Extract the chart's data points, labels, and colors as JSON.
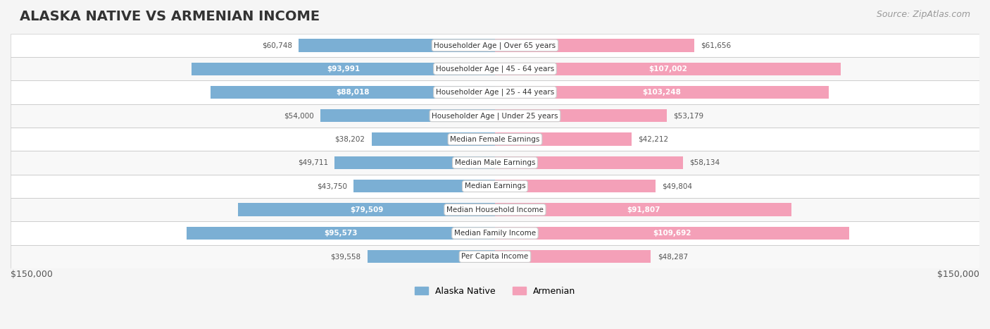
{
  "title": "ALASKA NATIVE VS ARMENIAN INCOME",
  "source": "Source: ZipAtlas.com",
  "categories": [
    "Per Capita Income",
    "Median Family Income",
    "Median Household Income",
    "Median Earnings",
    "Median Male Earnings",
    "Median Female Earnings",
    "Householder Age | Under 25 years",
    "Householder Age | 25 - 44 years",
    "Householder Age | 45 - 64 years",
    "Householder Age | Over 65 years"
  ],
  "alaska_values": [
    39558,
    95573,
    79509,
    43750,
    49711,
    38202,
    54000,
    88018,
    93991,
    60748
  ],
  "armenian_values": [
    48287,
    109692,
    91807,
    49804,
    58134,
    42212,
    53179,
    103248,
    107002,
    61656
  ],
  "alaska_labels": [
    "$39,558",
    "$95,573",
    "$79,509",
    "$43,750",
    "$49,711",
    "$38,202",
    "$54,000",
    "$88,018",
    "$93,991",
    "$60,748"
  ],
  "armenian_labels": [
    "$48,287",
    "$109,692",
    "$91,807",
    "$49,804",
    "$58,134",
    "$42,212",
    "$53,179",
    "$103,248",
    "$107,002",
    "$61,656"
  ],
  "alaska_color": "#7bafd4",
  "alaska_color_dark": "#5b8db8",
  "armenian_color": "#f4a0b8",
  "armenian_color_dark": "#e8607a",
  "max_value": 150000,
  "bar_height": 0.55,
  "background_color": "#f5f5f5",
  "row_bg_color": "#ffffff",
  "row_alt_bg": "#f0f0f0",
  "alaska_label_inside": [
    false,
    true,
    true,
    false,
    false,
    false,
    false,
    true,
    true,
    false
  ],
  "armenian_label_inside": [
    false,
    true,
    true,
    false,
    false,
    false,
    false,
    true,
    true,
    false
  ],
  "legend_labels": [
    "Alaska Native",
    "Armenian"
  ],
  "xlabel_left": "$150,000",
  "xlabel_right": "$150,000"
}
